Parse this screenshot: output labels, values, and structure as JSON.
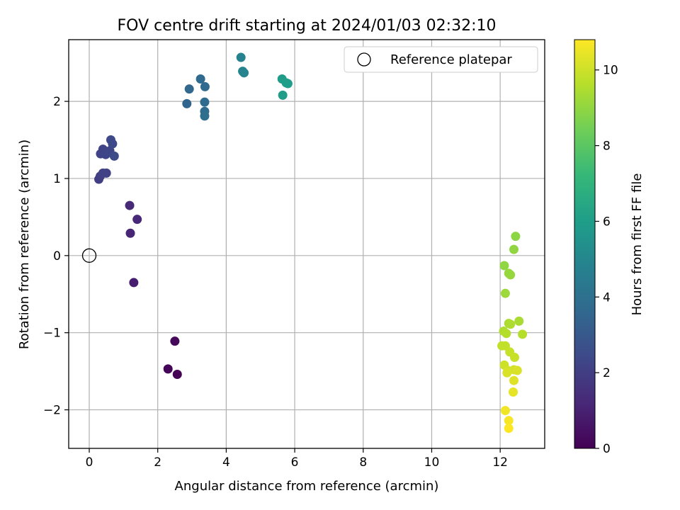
{
  "chart_data": {
    "type": "scatter",
    "title": "FOV centre drift starting at 2024/01/03 02:32:10",
    "xlabel": "Angular distance from reference (arcmin)",
    "ylabel": "Rotation from reference (arcmin)",
    "xlim": [
      -0.6,
      13.3
    ],
    "ylim": [
      -2.5,
      2.8
    ],
    "xticks": [
      0,
      2,
      4,
      6,
      8,
      10,
      12
    ],
    "yticks": [
      -2,
      -1,
      0,
      1,
      2
    ],
    "xtick_labels": [
      "0",
      "2",
      "4",
      "6",
      "8",
      "10",
      "12"
    ],
    "ytick_labels": [
      "−2",
      "−1",
      "0",
      "1",
      "2"
    ],
    "grid": true,
    "legend": {
      "position": "top-right",
      "entries": [
        {
          "label": "Reference platepar",
          "marker": "open-circle"
        }
      ]
    },
    "reference_point": {
      "x": 0,
      "y": 0
    },
    "colorbar": {
      "label": "Hours from first FF file",
      "min": 0,
      "max": 10.8,
      "ticks": [
        0,
        2,
        4,
        6,
        8,
        10
      ],
      "tick_labels": [
        "0",
        "2",
        "4",
        "6",
        "8",
        "10"
      ],
      "colormap": "viridis",
      "colormap_stops": [
        "#440154",
        "#482878",
        "#3e4989",
        "#31688e",
        "#26828e",
        "#1f9e89",
        "#35b779",
        "#6ece58",
        "#b5de2b",
        "#fde725"
      ]
    },
    "points": [
      {
        "x": 2.57,
        "y": -1.54,
        "h": 0.0
      },
      {
        "x": 2.3,
        "y": -1.47,
        "h": 0.1
      },
      {
        "x": 2.5,
        "y": -1.11,
        "h": 0.2
      },
      {
        "x": 1.3,
        "y": -0.35,
        "h": 0.9
      },
      {
        "x": 1.2,
        "y": 0.29,
        "h": 1.1
      },
      {
        "x": 1.4,
        "y": 0.47,
        "h": 1.2
      },
      {
        "x": 1.18,
        "y": 0.65,
        "h": 1.3
      },
      {
        "x": 0.28,
        "y": 0.99,
        "h": 2.0
      },
      {
        "x": 0.32,
        "y": 1.03,
        "h": 2.0
      },
      {
        "x": 0.4,
        "y": 1.07,
        "h": 2.1
      },
      {
        "x": 0.5,
        "y": 1.07,
        "h": 2.1
      },
      {
        "x": 0.33,
        "y": 1.32,
        "h": 2.2
      },
      {
        "x": 0.4,
        "y": 1.38,
        "h": 2.2
      },
      {
        "x": 0.48,
        "y": 1.31,
        "h": 2.3
      },
      {
        "x": 0.6,
        "y": 1.36,
        "h": 2.3
      },
      {
        "x": 0.63,
        "y": 1.5,
        "h": 2.4
      },
      {
        "x": 0.68,
        "y": 1.45,
        "h": 2.4
      },
      {
        "x": 0.73,
        "y": 1.29,
        "h": 2.5
      },
      {
        "x": 2.85,
        "y": 1.97,
        "h": 3.5
      },
      {
        "x": 2.92,
        "y": 2.16,
        "h": 3.6
      },
      {
        "x": 3.25,
        "y": 2.29,
        "h": 3.7
      },
      {
        "x": 3.38,
        "y": 2.19,
        "h": 3.7
      },
      {
        "x": 3.37,
        "y": 1.99,
        "h": 3.8
      },
      {
        "x": 3.37,
        "y": 1.87,
        "h": 3.8
      },
      {
        "x": 3.37,
        "y": 1.81,
        "h": 3.9
      },
      {
        "x": 4.43,
        "y": 2.57,
        "h": 4.8
      },
      {
        "x": 4.48,
        "y": 2.39,
        "h": 4.9
      },
      {
        "x": 4.52,
        "y": 2.37,
        "h": 4.9
      },
      {
        "x": 5.63,
        "y": 2.29,
        "h": 5.9
      },
      {
        "x": 5.75,
        "y": 2.24,
        "h": 6.0
      },
      {
        "x": 5.8,
        "y": 2.23,
        "h": 6.0
      },
      {
        "x": 5.65,
        "y": 2.08,
        "h": 5.9
      },
      {
        "x": 12.45,
        "y": 0.25,
        "h": 8.9
      },
      {
        "x": 12.4,
        "y": 0.08,
        "h": 9.0
      },
      {
        "x": 12.12,
        "y": -0.13,
        "h": 9.0
      },
      {
        "x": 12.25,
        "y": -0.23,
        "h": 9.1
      },
      {
        "x": 12.3,
        "y": -0.25,
        "h": 9.1
      },
      {
        "x": 12.15,
        "y": -0.49,
        "h": 9.2
      },
      {
        "x": 12.55,
        "y": -0.85,
        "h": 9.4
      },
      {
        "x": 12.25,
        "y": -0.88,
        "h": 9.4
      },
      {
        "x": 12.3,
        "y": -0.89,
        "h": 9.5
      },
      {
        "x": 12.1,
        "y": -0.98,
        "h": 9.5
      },
      {
        "x": 12.18,
        "y": -1.01,
        "h": 9.6
      },
      {
        "x": 12.65,
        "y": -1.02,
        "h": 9.6
      },
      {
        "x": 12.05,
        "y": -1.17,
        "h": 9.8
      },
      {
        "x": 12.15,
        "y": -1.17,
        "h": 9.8
      },
      {
        "x": 12.28,
        "y": -1.25,
        "h": 9.9
      },
      {
        "x": 12.42,
        "y": -1.32,
        "h": 9.9
      },
      {
        "x": 12.12,
        "y": -1.42,
        "h": 10.0
      },
      {
        "x": 12.22,
        "y": -1.49,
        "h": 10.1
      },
      {
        "x": 12.4,
        "y": -1.48,
        "h": 10.1
      },
      {
        "x": 12.5,
        "y": -1.49,
        "h": 10.2
      },
      {
        "x": 12.2,
        "y": -1.52,
        "h": 10.2
      },
      {
        "x": 12.4,
        "y": -1.62,
        "h": 10.3
      },
      {
        "x": 12.38,
        "y": -1.77,
        "h": 10.4
      },
      {
        "x": 12.15,
        "y": -2.01,
        "h": 10.6
      },
      {
        "x": 12.25,
        "y": -2.14,
        "h": 10.7
      },
      {
        "x": 12.25,
        "y": -2.24,
        "h": 10.8
      }
    ]
  }
}
